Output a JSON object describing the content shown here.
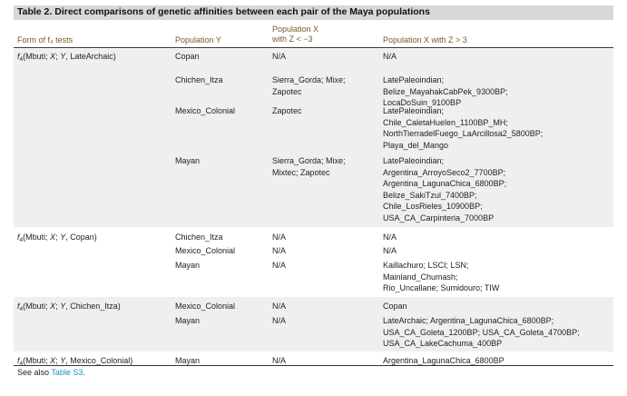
{
  "table": {
    "title": "Table 2. Direct comparisons of genetic affinities between each pair of the Maya populations",
    "headers": {
      "form": "Form of f₄ tests",
      "pop_y": "Population Y",
      "pop_x_neg_line1": "Population X",
      "pop_x_neg_line2": "with Z < −3",
      "pop_x_pos": "Population X with Z > 3"
    },
    "rows": [
      {
        "form": "f₄(Mbuti; X; Y, LateArchaic)",
        "y": "Copan",
        "neg": [
          "N/A"
        ],
        "pos": [
          "N/A"
        ]
      },
      {
        "form": "",
        "y": "Chichen_Itza",
        "neg": [
          "Sierra_Gorda; Mixe;",
          "Zapotec"
        ],
        "pos": [
          "LatePaleoindian;",
          "Belize_MayahakCabPek_9300BP;",
          "LocaDoSuin_9100BP"
        ]
      },
      {
        "form": "",
        "y": "Mexico_Colonial",
        "neg": [
          "Zapotec"
        ],
        "pos": [
          "LatePaleoindian;",
          "Chile_CaletaHuelen_1100BP_MH;",
          "NorthTierradelFuego_LaArcillosa2_5800BP;",
          "Playa_del_Mango"
        ]
      },
      {
        "form": "",
        "y": "Mayan",
        "neg": [
          "Sierra_Gorda; Mixe;",
          "Mixtec; Zapotec"
        ],
        "pos": [
          "LatePaleoindian;",
          "Argentina_ArroyoSeco2_7700BP;",
          "Argentina_LagunaChica_6800BP;",
          "Belize_SakiTzul_7400BP;",
          "Chile_LosRieles_10900BP;",
          "USA_CA_Carpinteria_7000BP"
        ]
      },
      {
        "form": "f₄(Mbuti; X; Y, Copan)",
        "y": "Chichen_Itza",
        "neg": [
          "N/A"
        ],
        "pos": [
          "N/A"
        ]
      },
      {
        "form": "",
        "y": "Mexico_Colonial",
        "neg": [
          "N/A"
        ],
        "pos": [
          "N/A"
        ]
      },
      {
        "form": "",
        "y": "Mayan",
        "neg": [
          "N/A"
        ],
        "pos": [
          "Kaillachuro; LSCI; LSN;",
          "Mainland_Chumash;",
          "Rio_Uncallane; Sumidouro; TIW"
        ]
      },
      {
        "form": "f₄(Mbuti; X; Y, Chichen_Itza)",
        "y": "Mexico_Colonial",
        "neg": [
          "N/A"
        ],
        "pos": [
          "Copan"
        ]
      },
      {
        "form": "",
        "y": "Mayan",
        "neg": [
          "N/A"
        ],
        "pos": [
          "LateArchaic; Argentina_LagunaChica_6800BP;",
          "USA_CA_Goleta_1200BP; USA_CA_Goleta_4700BP;",
          "USA_CA_LakeCachuma_400BP"
        ]
      },
      {
        "form": "f₄(Mbuti; X; Y, Mexico_Colonial)",
        "y": "Mayan",
        "neg": [
          "N/A"
        ],
        "pos": [
          "Argentina_LagunaChica_6800BP"
        ]
      }
    ],
    "footnote_prefix": "See also ",
    "footnote_link": "Table S3",
    "footnote_suffix": "."
  }
}
